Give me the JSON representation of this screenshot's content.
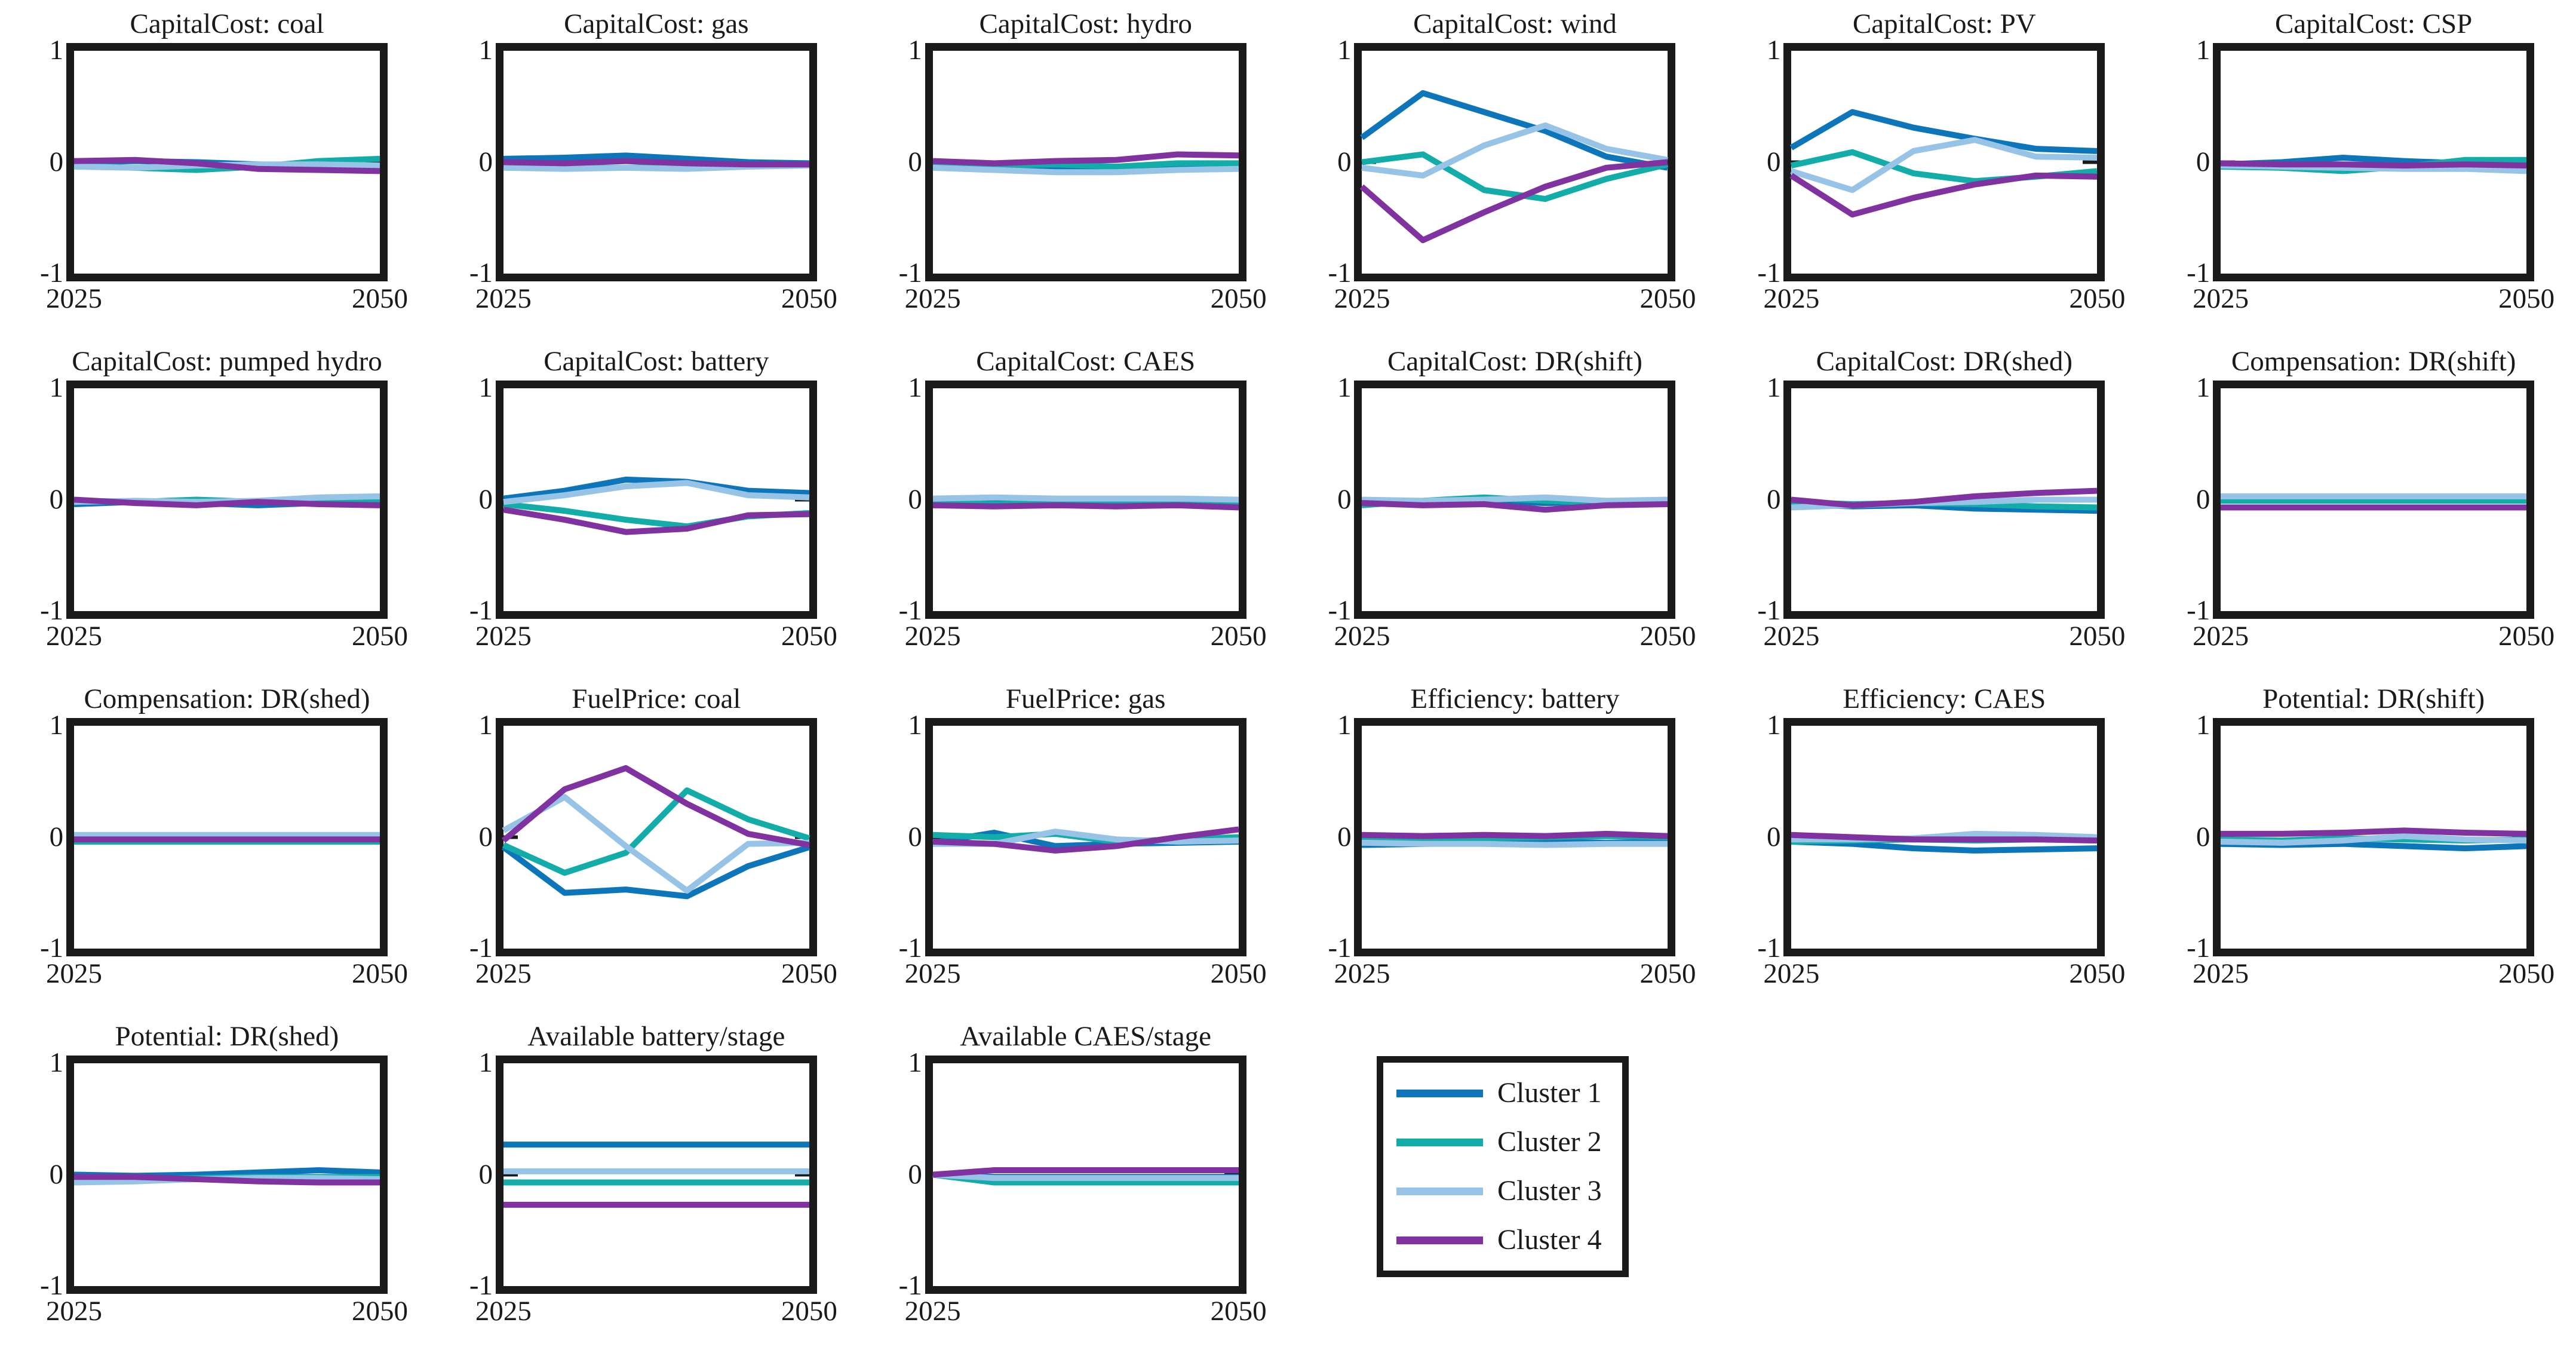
{
  "figure": {
    "background": "#ffffff",
    "frame_color": "#1a1a1a",
    "text_color": "#1a1a1a"
  },
  "chart_data": {
    "type": "line",
    "x": [
      2025,
      2030,
      2035,
      2040,
      2045,
      2050
    ],
    "xlim": [
      2025,
      2050
    ],
    "ylim": [
      -1,
      1
    ],
    "ytick_labels": [
      "1",
      "0",
      "-1"
    ],
    "xtick_labels": [
      "2025",
      "2050"
    ],
    "grid": "off",
    "legend": {
      "entries": [
        "Cluster 1",
        "Cluster 2",
        "Cluster 3",
        "Cluster 4"
      ],
      "position": "row4-col4",
      "border_color": "#1a1a1a"
    },
    "series_colors": [
      "#0d76bb",
      "#12ada8",
      "#97c4e6",
      "#8033a0"
    ],
    "plots": [
      {
        "title": "CapitalCost: coal",
        "series": [
          [
            0.0,
            0.01,
            0.0,
            -0.02,
            -0.04,
            -0.03
          ],
          [
            -0.03,
            -0.05,
            -0.07,
            -0.04,
            0.01,
            0.03
          ],
          [
            -0.04,
            -0.05,
            -0.03,
            -0.02,
            -0.02,
            -0.03
          ],
          [
            0.01,
            0.02,
            -0.01,
            -0.06,
            -0.07,
            -0.08
          ]
        ]
      },
      {
        "title": "CapitalCost: gas",
        "series": [
          [
            0.03,
            0.04,
            0.06,
            0.03,
            0.0,
            -0.01
          ],
          [
            -0.04,
            -0.05,
            -0.05,
            -0.04,
            -0.03,
            -0.02
          ],
          [
            -0.05,
            -0.06,
            -0.05,
            -0.06,
            -0.04,
            -0.03
          ],
          [
            0.0,
            -0.01,
            0.01,
            -0.01,
            -0.02,
            -0.02
          ]
        ]
      },
      {
        "title": "CapitalCost: hydro",
        "series": [
          [
            -0.02,
            -0.04,
            -0.06,
            -0.06,
            -0.03,
            -0.02
          ],
          [
            -0.02,
            -0.03,
            -0.02,
            -0.04,
            -0.01,
            -0.01
          ],
          [
            -0.05,
            -0.07,
            -0.09,
            -0.09,
            -0.07,
            -0.06
          ],
          [
            0.01,
            -0.01,
            0.01,
            0.02,
            0.07,
            0.06
          ]
        ]
      },
      {
        "title": "CapitalCost: wind",
        "series": [
          [
            0.22,
            0.62,
            0.45,
            0.28,
            0.05,
            -0.05
          ],
          [
            0.0,
            0.07,
            -0.25,
            -0.33,
            -0.15,
            -0.02
          ],
          [
            -0.05,
            -0.12,
            0.15,
            0.33,
            0.12,
            0.02
          ],
          [
            -0.22,
            -0.7,
            -0.45,
            -0.22,
            -0.05,
            0.0
          ]
        ]
      },
      {
        "title": "CapitalCost: PV",
        "series": [
          [
            0.13,
            0.45,
            0.31,
            0.21,
            0.12,
            0.1
          ],
          [
            -0.03,
            0.09,
            -0.1,
            -0.17,
            -0.13,
            -0.08
          ],
          [
            -0.08,
            -0.25,
            0.1,
            0.2,
            0.05,
            0.04
          ],
          [
            -0.12,
            -0.47,
            -0.32,
            -0.2,
            -0.12,
            -0.13
          ]
        ]
      },
      {
        "title": "CapitalCost: CSP",
        "series": [
          [
            -0.02,
            0.0,
            0.04,
            0.01,
            -0.01,
            -0.02
          ],
          [
            -0.04,
            -0.05,
            -0.08,
            -0.04,
            0.02,
            0.02
          ],
          [
            -0.03,
            -0.04,
            -0.05,
            -0.06,
            -0.06,
            -0.08
          ],
          [
            -0.01,
            -0.02,
            -0.02,
            -0.03,
            -0.02,
            -0.03
          ]
        ]
      },
      {
        "title": "CapitalCost: pumped hydro",
        "series": [
          [
            -0.04,
            -0.02,
            -0.03,
            -0.05,
            -0.03,
            -0.02
          ],
          [
            -0.01,
            -0.02,
            0.0,
            -0.02,
            -0.01,
            -0.02
          ],
          [
            -0.02,
            -0.01,
            -0.02,
            -0.01,
            0.02,
            0.03
          ],
          [
            0.0,
            -0.03,
            -0.05,
            -0.02,
            -0.04,
            -0.05
          ]
        ]
      },
      {
        "title": "CapitalCost: battery",
        "series": [
          [
            0.01,
            0.08,
            0.18,
            0.16,
            0.08,
            0.06
          ],
          [
            -0.04,
            -0.1,
            -0.18,
            -0.24,
            -0.15,
            -0.12
          ],
          [
            -0.02,
            0.04,
            0.12,
            0.15,
            0.04,
            0.02
          ],
          [
            -0.09,
            -0.18,
            -0.29,
            -0.26,
            -0.14,
            -0.13
          ]
        ]
      },
      {
        "title": "CapitalCost: CAES",
        "series": [
          [
            -0.03,
            -0.03,
            -0.04,
            -0.03,
            -0.04,
            -0.03
          ],
          [
            -0.02,
            -0.04,
            -0.03,
            -0.04,
            -0.03,
            -0.04
          ],
          [
            0.01,
            0.02,
            0.01,
            0.01,
            0.01,
            0.0
          ],
          [
            -0.05,
            -0.06,
            -0.05,
            -0.06,
            -0.05,
            -0.07
          ]
        ]
      },
      {
        "title": "CapitalCost: DR(shift)",
        "series": [
          [
            -0.01,
            -0.02,
            -0.01,
            -0.03,
            -0.02,
            -0.02
          ],
          [
            -0.05,
            -0.01,
            0.02,
            -0.01,
            -0.03,
            -0.02
          ],
          [
            0.0,
            -0.01,
            0.0,
            0.02,
            -0.01,
            0.0
          ],
          [
            -0.03,
            -0.05,
            -0.04,
            -0.09,
            -0.05,
            -0.04
          ]
        ]
      },
      {
        "title": "CapitalCost: DR(shed)",
        "series": [
          [
            -0.04,
            -0.06,
            -0.05,
            -0.08,
            -0.09,
            -0.1
          ],
          [
            -0.02,
            -0.04,
            -0.03,
            -0.04,
            -0.06,
            -0.07
          ],
          [
            -0.07,
            -0.05,
            -0.03,
            -0.02,
            0.0,
            0.0
          ],
          [
            0.0,
            -0.05,
            -0.02,
            0.03,
            0.06,
            0.08
          ]
        ]
      },
      {
        "title": "Compensation: DR(shift)",
        "series": [
          [
            0.01,
            0.01,
            0.01,
            0.01,
            0.01,
            0.01
          ],
          [
            -0.01,
            -0.01,
            -0.01,
            -0.01,
            -0.01,
            -0.01
          ],
          [
            0.03,
            0.03,
            0.03,
            0.03,
            0.03,
            0.03
          ],
          [
            -0.07,
            -0.07,
            -0.07,
            -0.07,
            -0.07,
            -0.07
          ]
        ]
      },
      {
        "title": "Compensation: DR(shed)",
        "series": [
          [
            0.0,
            0.0,
            0.0,
            0.0,
            0.0,
            0.0
          ],
          [
            -0.04,
            -0.04,
            -0.04,
            -0.04,
            -0.04,
            -0.04
          ],
          [
            0.02,
            0.02,
            0.02,
            0.02,
            0.02,
            0.02
          ],
          [
            -0.02,
            -0.02,
            -0.02,
            -0.02,
            -0.02,
            -0.02
          ]
        ]
      },
      {
        "title": "FuelPrice: coal",
        "series": [
          [
            -0.09,
            -0.5,
            -0.47,
            -0.53,
            -0.26,
            -0.09
          ],
          [
            -0.07,
            -0.32,
            -0.14,
            0.42,
            0.16,
            -0.01
          ],
          [
            0.06,
            0.36,
            -0.08,
            -0.48,
            -0.06,
            -0.05
          ],
          [
            -0.03,
            0.43,
            0.62,
            0.3,
            0.03,
            -0.07
          ]
        ]
      },
      {
        "title": "FuelPrice: gas",
        "series": [
          [
            -0.05,
            0.04,
            -0.08,
            -0.06,
            -0.05,
            -0.04
          ],
          [
            0.02,
            0.0,
            0.03,
            -0.04,
            -0.02,
            0.0
          ],
          [
            -0.06,
            -0.06,
            0.05,
            -0.02,
            -0.04,
            -0.03
          ],
          [
            -0.04,
            -0.06,
            -0.12,
            -0.08,
            0.0,
            0.07
          ]
        ]
      },
      {
        "title": "Efficiency: battery",
        "series": [
          [
            -0.07,
            -0.06,
            -0.05,
            -0.04,
            -0.05,
            -0.04
          ],
          [
            -0.01,
            -0.02,
            -0.01,
            0.0,
            0.01,
            0.0
          ],
          [
            -0.05,
            -0.06,
            -0.06,
            -0.07,
            -0.06,
            -0.06
          ],
          [
            0.02,
            0.01,
            0.02,
            0.01,
            0.03,
            0.01
          ]
        ]
      },
      {
        "title": "Efficiency: CAES",
        "series": [
          [
            -0.04,
            -0.06,
            -0.1,
            -0.12,
            -0.11,
            -0.1
          ],
          [
            -0.04,
            -0.03,
            -0.02,
            -0.03,
            -0.02,
            -0.02
          ],
          [
            -0.02,
            -0.02,
            -0.01,
            0.03,
            0.02,
            0.0
          ],
          [
            0.02,
            0.0,
            -0.02,
            -0.02,
            -0.02,
            -0.03
          ]
        ]
      },
      {
        "title": "Potential: DR(shift)",
        "series": [
          [
            -0.06,
            -0.07,
            -0.06,
            -0.08,
            -0.1,
            -0.08
          ],
          [
            -0.02,
            -0.03,
            -0.01,
            -0.02,
            -0.03,
            -0.02
          ],
          [
            -0.04,
            -0.05,
            -0.03,
            0.01,
            -0.02,
            -0.03
          ],
          [
            0.03,
            0.03,
            0.04,
            0.06,
            0.04,
            0.03
          ]
        ]
      },
      {
        "title": "Potential: DR(shed)",
        "series": [
          [
            0.0,
            -0.01,
            0.0,
            0.02,
            0.04,
            0.02
          ],
          [
            -0.03,
            -0.04,
            -0.03,
            -0.02,
            -0.02,
            -0.02
          ],
          [
            -0.07,
            -0.06,
            -0.04,
            -0.03,
            -0.03,
            -0.04
          ],
          [
            -0.02,
            -0.02,
            -0.04,
            -0.06,
            -0.07,
            -0.07
          ]
        ]
      },
      {
        "title": "Available battery/stage",
        "series": [
          [
            0.27,
            0.27,
            0.27,
            0.27,
            0.27,
            0.27
          ],
          [
            -0.07,
            -0.07,
            -0.07,
            -0.07,
            -0.07,
            -0.07
          ],
          [
            0.03,
            0.03,
            0.03,
            0.03,
            0.03,
            0.03
          ],
          [
            -0.27,
            -0.27,
            -0.27,
            -0.27,
            -0.27,
            -0.27
          ]
        ]
      },
      {
        "title": "Available CAES/stage",
        "series": [
          [
            0.0,
            -0.02,
            -0.02,
            -0.02,
            -0.02,
            -0.02
          ],
          [
            0.0,
            -0.07,
            -0.07,
            -0.07,
            -0.07,
            -0.07
          ],
          [
            0.0,
            -0.03,
            -0.03,
            -0.03,
            -0.03,
            -0.03
          ],
          [
            0.0,
            0.04,
            0.04,
            0.04,
            0.04,
            0.04
          ]
        ]
      }
    ]
  }
}
